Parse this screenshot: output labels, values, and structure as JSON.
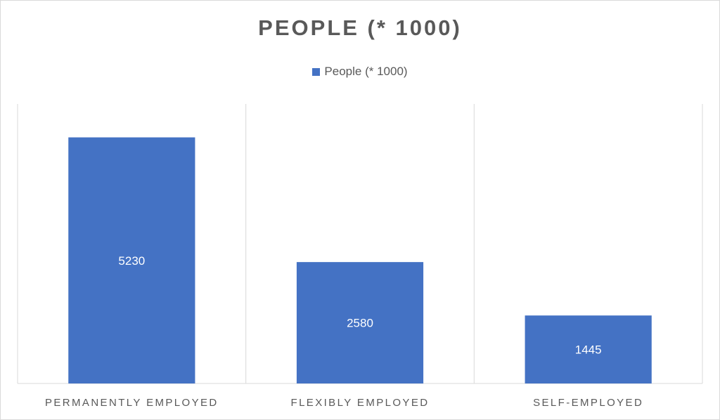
{
  "chart_data": {
    "type": "bar",
    "title": "PEOPLE (* 1000)",
    "categories": [
      "PERMANENTLY EMPLOYED",
      "FLEXIBLY EMPLOYED",
      "SELF-EMPLOYED"
    ],
    "series": [
      {
        "name": "People (* 1000)",
        "values": [
          5230,
          2580,
          1445
        ],
        "data_labels": [
          "5230",
          "2580",
          "1445"
        ]
      }
    ],
    "ylim": [
      0,
      6000
    ],
    "grid": "vertical category separators",
    "legend_position": "top",
    "colors": {
      "bar": "#4472c4",
      "gridline": "#d9d9d9",
      "text": "#595959"
    }
  }
}
